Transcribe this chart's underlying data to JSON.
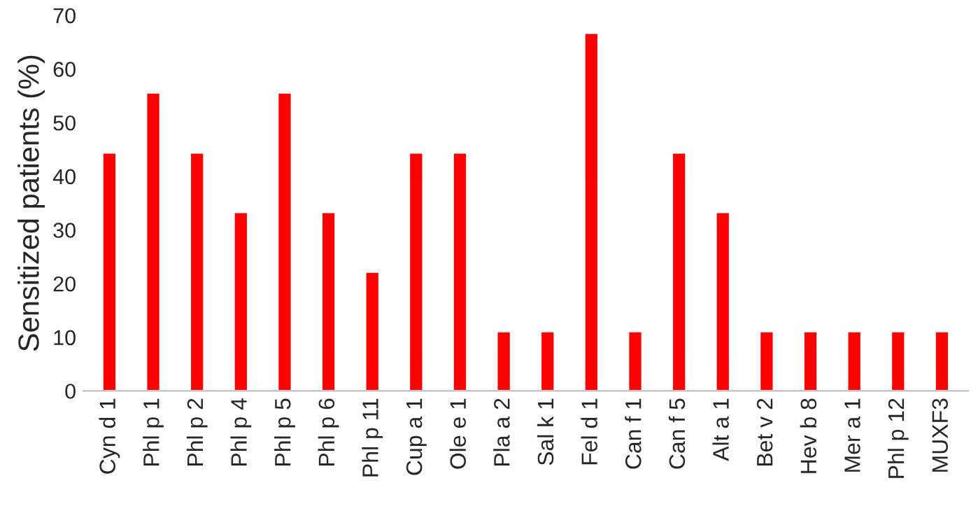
{
  "chart_data": {
    "type": "bar",
    "ylabel": "Sensitized patients (%)",
    "categories": [
      "Cyn d 1",
      "Phl p 1",
      "Phl p 2",
      "Phl p 4",
      "Phl p 5",
      "Phl p 6",
      "Phl p 11",
      "Cup a 1",
      "Ole e 1",
      "Pla a 2",
      "Sal k 1",
      "Fel d 1",
      "Can f 1",
      "Can f 5",
      "Alt a 1",
      "Bet v 2",
      "Hev b 8",
      "Mer a 1",
      "Phl p 12",
      "MUXF3"
    ],
    "values": [
      44.4,
      55.6,
      44.4,
      33.3,
      55.6,
      33.3,
      22.2,
      44.4,
      44.4,
      11.1,
      11.1,
      66.7,
      11.1,
      44.4,
      33.3,
      11.1,
      11.1,
      11.1,
      11.1,
      11.1
    ],
    "color": "#ff0000",
    "ylim": [
      0,
      70
    ],
    "yticks": [
      0,
      10,
      20,
      30,
      40,
      50,
      60,
      70
    ],
    "grid": false,
    "legend": false
  }
}
